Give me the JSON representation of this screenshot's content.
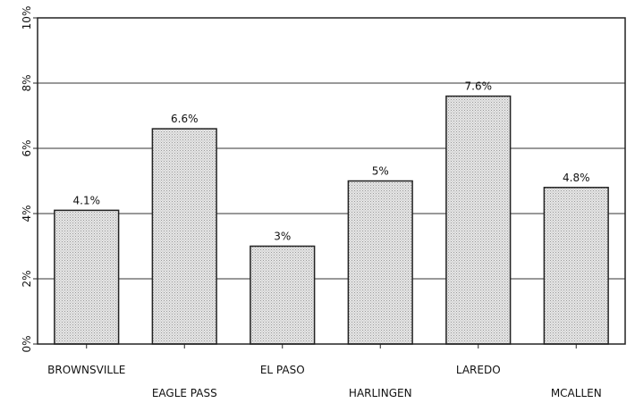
{
  "chart_data": {
    "type": "bar",
    "title": "",
    "xlabel": "",
    "ylabel": "",
    "categories": [
      "BROWNSVILLE",
      "EAGLE PASS",
      "EL PASO",
      "HARLINGEN",
      "LAREDO",
      "MCALLEN"
    ],
    "values": [
      4.1,
      6.6,
      3,
      5,
      7.6,
      4.8
    ],
    "data_labels": [
      "4.1%",
      "6.6%",
      "3%",
      "5%",
      "7.6%",
      "4.8%"
    ],
    "ylim": [
      0,
      10
    ],
    "yticks": [
      0,
      2,
      4,
      6,
      8,
      10
    ],
    "ytick_labels": [
      "0%",
      "2%",
      "4%",
      "6%",
      "8%",
      "10%"
    ],
    "grid": true,
    "legend": "none",
    "colors": {
      "bar_fill": "#d9d9d9",
      "bar_stroke": "#222222",
      "grid": "#333333",
      "axis": "#222222"
    }
  }
}
